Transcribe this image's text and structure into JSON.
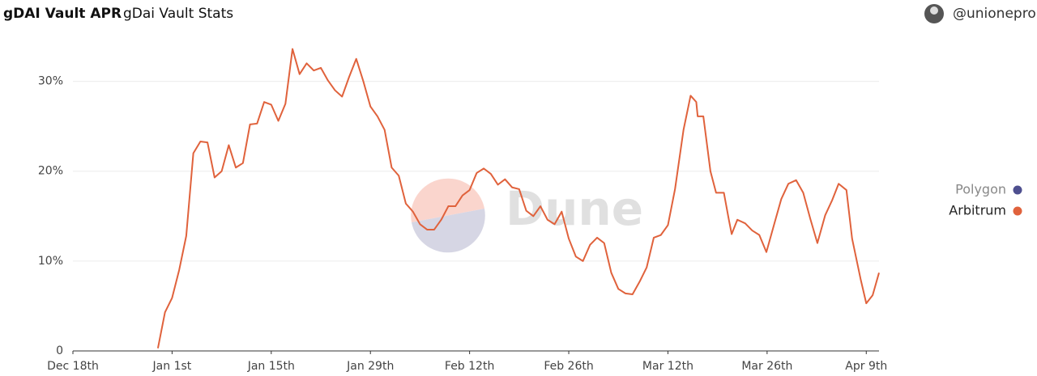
{
  "chart_data": {
    "type": "line",
    "title": "gDAI Vault APR",
    "subtitle": "gDai Vault Stats",
    "author": "@unionepro",
    "watermark": "Dune",
    "x": [
      12,
      13,
      14,
      15,
      16,
      17,
      18,
      19,
      20,
      21,
      22,
      23,
      24,
      25,
      26,
      27,
      28,
      29,
      30,
      31,
      32,
      33,
      34,
      35,
      36,
      37,
      38,
      39,
      40,
      41,
      42,
      43,
      44,
      45,
      46,
      47,
      48,
      49,
      50,
      51,
      52,
      53,
      54,
      55,
      56,
      57,
      58,
      59,
      60,
      61,
      62,
      63,
      64,
      65,
      66,
      67,
      68,
      69,
      70,
      71,
      72,
      73,
      74,
      75,
      76,
      77,
      78,
      79,
      80,
      81,
      82,
      83,
      84,
      85,
      86.2,
      87.2,
      88,
      88.2,
      89,
      90,
      90.8,
      91.9,
      92.6,
      93,
      93.8,
      94.9,
      95.9,
      96.9,
      97.9,
      99,
      100,
      101,
      102.1,
      103.1,
      104.1,
      105.1,
      106.2,
      107.2,
      108.1,
      109.2,
      110,
      111.2,
      112,
      112.9,
      113.8
    ],
    "series": [
      {
        "name": "Polygon",
        "color": "#4e4f8f",
        "values": [
          null,
          null,
          null,
          null,
          null,
          null,
          null,
          null,
          null,
          null,
          null,
          null,
          null,
          null,
          null,
          null,
          null,
          null,
          null,
          null,
          null,
          null,
          null,
          null,
          null,
          null,
          null,
          null,
          null,
          null,
          null,
          null,
          null,
          null,
          null,
          null,
          null,
          null,
          null,
          null,
          null,
          null,
          null,
          null,
          null,
          null,
          null,
          null,
          null,
          null,
          null,
          null,
          null,
          null,
          null,
          null,
          null,
          null,
          null,
          null,
          null,
          null,
          null,
          null,
          null,
          null,
          null,
          null,
          null,
          null,
          null,
          null,
          null,
          null,
          null,
          null,
          null,
          null,
          null,
          null,
          null,
          null,
          null,
          null,
          null,
          null,
          null,
          null,
          null,
          null,
          null,
          null,
          null,
          null,
          null,
          null,
          null,
          null,
          null,
          null,
          null,
          null,
          null,
          null,
          null
        ]
      },
      {
        "name": "Arbitrum",
        "color": "#e0623c",
        "values": [
          0.3,
          4.3,
          5.9,
          9.0,
          12.8,
          22.0,
          23.3,
          23.2,
          19.3,
          20.0,
          22.9,
          20.4,
          20.9,
          25.2,
          25.3,
          27.7,
          27.4,
          25.6,
          27.5,
          33.6,
          30.8,
          32.0,
          31.2,
          31.5,
          30.1,
          29.0,
          28.3,
          30.5,
          32.5,
          30.0,
          27.2,
          26.1,
          24.6,
          20.4,
          19.5,
          16.4,
          15.5,
          14.1,
          13.5,
          13.5,
          14.6,
          16.1,
          16.1,
          17.3,
          17.9,
          19.8,
          20.3,
          19.7,
          18.5,
          19.1,
          18.2,
          18.0,
          15.6,
          15.0,
          16.1,
          14.6,
          14.1,
          15.5,
          12.5,
          10.5,
          10.0,
          11.8,
          12.6,
          12.0,
          8.7,
          6.9,
          6.4,
          6.3,
          7.7,
          9.3,
          12.6,
          12.9,
          14.0,
          18.0,
          24.6,
          28.4,
          27.7,
          26.1,
          26.1,
          20.0,
          17.6,
          17.6,
          14.6,
          13.0,
          14.6,
          14.2,
          13.4,
          12.9,
          11.0,
          14.1,
          16.9,
          18.6,
          19.0,
          17.6,
          14.7,
          12.0,
          15.1,
          16.8,
          18.6,
          17.9,
          12.5,
          8.0,
          5.3,
          6.2,
          8.7
        ]
      }
    ],
    "xlim": [
      0,
      113.8
    ],
    "xticks": [
      {
        "value": 0,
        "label": "Dec 18th"
      },
      {
        "value": 14,
        "label": "Jan 1st"
      },
      {
        "value": 28,
        "label": "Jan 15th"
      },
      {
        "value": 42,
        "label": "Jan 29th"
      },
      {
        "value": 56,
        "label": "Feb 12th"
      },
      {
        "value": 70,
        "label": "Feb 26th"
      },
      {
        "value": 84,
        "label": "Mar 12th"
      },
      {
        "value": 98,
        "label": "Mar 26th"
      },
      {
        "value": 112,
        "label": "Apr 9th"
      }
    ],
    "ylim": [
      0,
      35
    ],
    "yticks": [
      0,
      {
        "value": 10,
        "label": "10%"
      },
      {
        "value": 20,
        "label": "20%"
      },
      {
        "value": 30,
        "label": "30%"
      }
    ],
    "grid": true,
    "legend": "right"
  }
}
